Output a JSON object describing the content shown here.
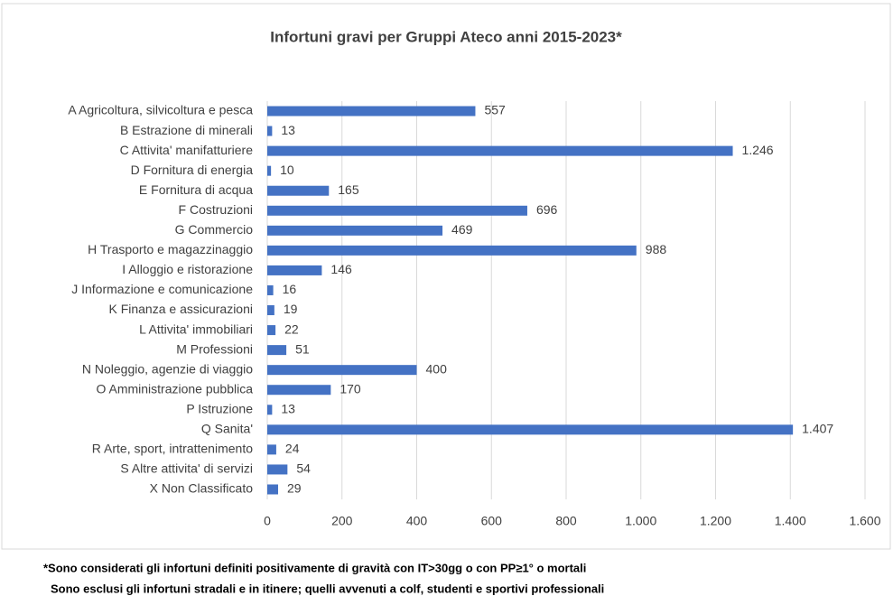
{
  "chart_data": {
    "type": "hbar",
    "title": "Infortuni gravi per Gruppi Ateco anni 2015-2023*",
    "categories": [
      "A Agricoltura, silvicoltura e pesca",
      "B Estrazione di minerali",
      "C Attivita' manifatturiere",
      "D Fornitura di energia",
      "E Fornitura di acqua",
      "F Costruzioni",
      "G Commercio",
      "H Trasporto e magazzinaggio",
      "I Alloggio e ristorazione",
      "J Informazione e comunicazione",
      "K Finanza e assicurazioni",
      "L Attivita' immobiliari",
      "M Professioni",
      "N Noleggio, agenzie di viaggio",
      "O Amministrazione pubblica",
      "P Istruzione",
      "Q Sanita'",
      "R Arte, sport, intrattenimento",
      "S Altre attivita' di servizi",
      "X Non Classificato"
    ],
    "values": [
      557,
      13,
      1246,
      10,
      165,
      696,
      469,
      988,
      146,
      16,
      19,
      22,
      51,
      400,
      170,
      13,
      1407,
      24,
      54,
      29
    ],
    "value_labels": [
      "557",
      "13",
      "1.246",
      "10",
      "165",
      "696",
      "469",
      "988",
      "146",
      "16",
      "19",
      "22",
      "51",
      "400",
      "170",
      "13",
      "1.407",
      "24",
      "54",
      "29"
    ],
    "color": "#4472c4",
    "xlim": [
      0,
      1600
    ],
    "xticks": [
      0,
      200,
      400,
      600,
      800,
      {
        "value": 1000,
        "label": "1.000"
      },
      {
        "value": 1200,
        "label": "1.200"
      },
      {
        "value": 1400,
        "label": "1.400"
      },
      {
        "value": 1600,
        "label": "1.600"
      }
    ],
    "grid": true,
    "notes": [
      "*Sono considerati gli infortuni definiti positivamente di gravità con IT>30gg o con PP≥1° o mortali",
      "Sono esclusi gli infortuni stradali e in itinere; quelli avvenuti a colf, studenti e sportivi professionali"
    ]
  }
}
